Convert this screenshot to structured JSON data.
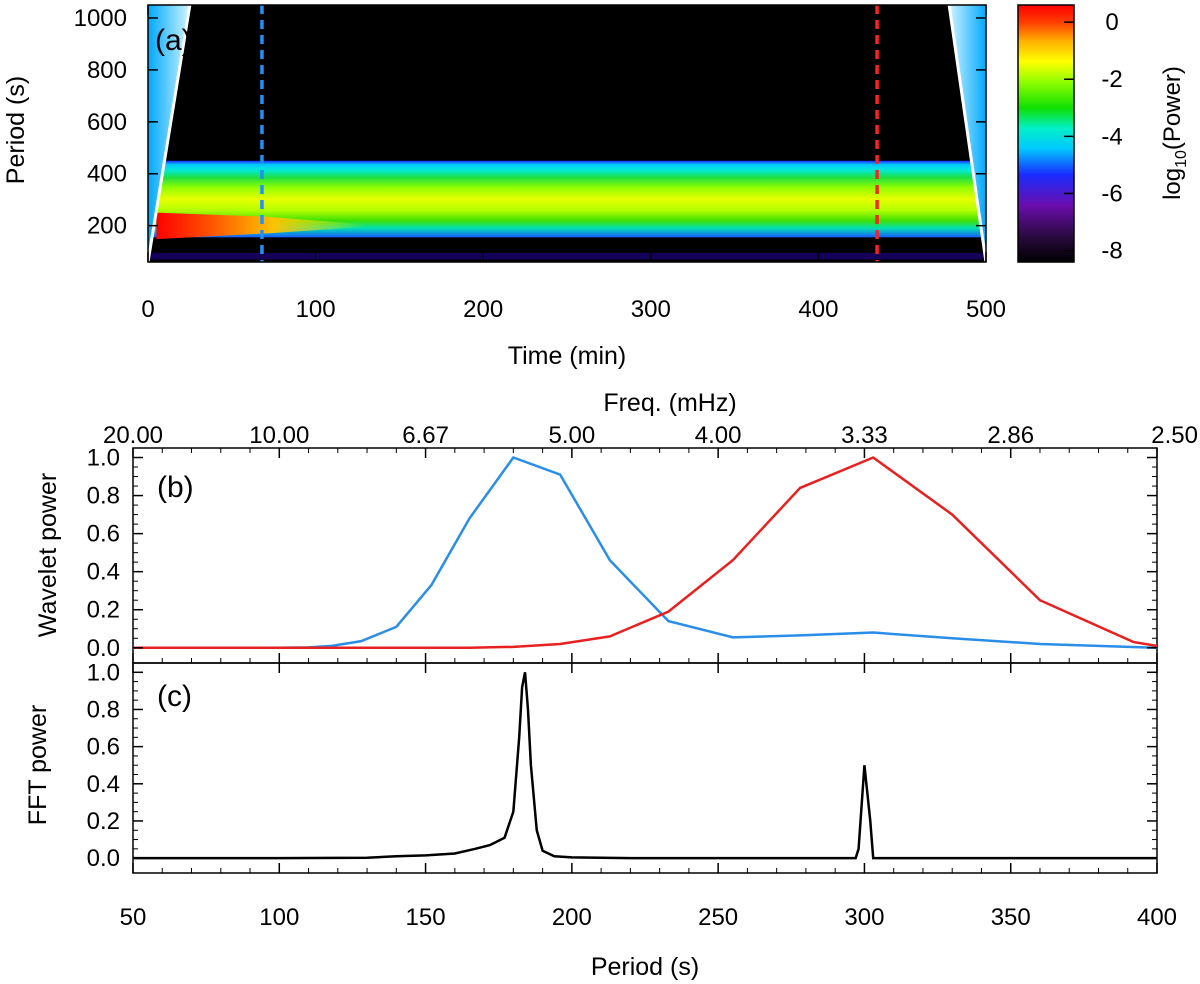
{
  "chart_data": [
    {
      "panel": "(a)",
      "type": "heatmap",
      "xlabel": "Time (min)",
      "ylabel": "Period (s)",
      "xlim": [
        0,
        500
      ],
      "ylim": [
        60,
        1050
      ],
      "xticks": [
        0,
        100,
        200,
        300,
        400,
        500
      ],
      "yticks": [
        200,
        400,
        600,
        800,
        1000
      ],
      "colorbar": {
        "label_main": "log",
        "label_sub": "10",
        "label_tail": "(Power)",
        "range": [
          -8.4,
          0.6
        ],
        "ticks": [
          0,
          -2,
          -4,
          -6,
          -8
        ]
      },
      "markers": [
        {
          "name": "",
          "time": 68,
          "color": "#1e90ff"
        },
        {
          "name": "",
          "time": 435,
          "color": "#ff2020"
        }
      ],
      "bands": [
        {
          "period_range": [
            370,
            450
          ],
          "approx_log_power": -4.5
        },
        {
          "period_range": [
            240,
            370
          ],
          "approx_log_power": -2.5
        },
        {
          "period_range": [
            150,
            240
          ],
          "approx_log_power": -0.3,
          "time_range": [
            0,
            130
          ]
        },
        {
          "period_range": [
            450,
            1050
          ],
          "approx_log_power": -8.4
        }
      ],
      "cone_of_influence": {
        "color": "#ffffff"
      }
    },
    {
      "panel": "(b)",
      "type": "line",
      "xlabel": "",
      "ylabel": "Wavelet power",
      "top_xlabel": "Freq. (mHz)",
      "xlim": [
        50,
        400
      ],
      "ylim": [
        -0.08,
        1.05
      ],
      "top_ticks": [
        "20.00",
        "10.00",
        "6.67",
        "5.00",
        "4.00",
        "3.33",
        "2.86",
        "2.50"
      ],
      "yticks": [
        "0.0",
        "0.2",
        "0.4",
        "0.6",
        "0.8",
        "1.0"
      ],
      "series": [
        {
          "name": "",
          "color": "#2a8ee8",
          "x": [
            50,
            100,
            110,
            118,
            128,
            140,
            152,
            165,
            180,
            196,
            213,
            233,
            255,
            278,
            303,
            330,
            360,
            400
          ],
          "y": [
            0,
            0,
            0.002,
            0.01,
            0.035,
            0.11,
            0.33,
            0.68,
            1.0,
            0.91,
            0.46,
            0.14,
            0.055,
            0.065,
            0.08,
            0.05,
            0.02,
            0.0
          ]
        },
        {
          "name": "",
          "color": "#e82020",
          "x": [
            50,
            140,
            165,
            180,
            196,
            213,
            233,
            255,
            278,
            303,
            330,
            360,
            392,
            400
          ],
          "y": [
            0,
            0,
            0.0,
            0.005,
            0.02,
            0.06,
            0.19,
            0.46,
            0.84,
            1.0,
            0.7,
            0.25,
            0.03,
            0.01
          ]
        }
      ]
    },
    {
      "panel": "(c)",
      "type": "line",
      "xlabel": "Period (s)",
      "ylabel": "FFT power",
      "xlim": [
        50,
        400
      ],
      "ylim": [
        -0.08,
        1.05
      ],
      "xticks": [
        "50",
        "100",
        "150",
        "200",
        "250",
        "300",
        "350",
        "400"
      ],
      "yticks": [
        "0.0",
        "0.2",
        "0.4",
        "0.6",
        "0.8",
        "1.0"
      ],
      "series": [
        {
          "name": "",
          "color": "#000000",
          "x": [
            50,
            100,
            130,
            140,
            150,
            160,
            167,
            172,
            177,
            180,
            182,
            183,
            184,
            185,
            186,
            188,
            190,
            194,
            200,
            220,
            250,
            290,
            297,
            298,
            300,
            302,
            303,
            305,
            340,
            400
          ],
          "y": [
            0,
            0,
            0.002,
            0.01,
            0.015,
            0.025,
            0.05,
            0.07,
            0.11,
            0.25,
            0.65,
            0.92,
            1.0,
            0.8,
            0.5,
            0.15,
            0.04,
            0.01,
            0.004,
            0.0,
            0.0,
            0.0,
            0.0,
            0.05,
            0.5,
            0.2,
            0.0,
            0.0,
            0.0,
            0.0
          ]
        }
      ]
    }
  ]
}
